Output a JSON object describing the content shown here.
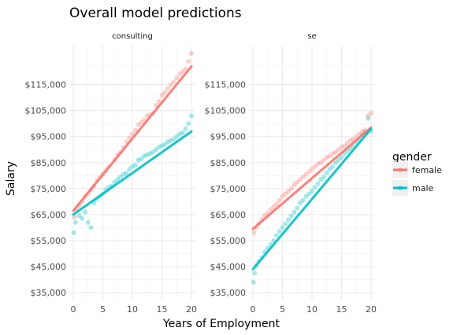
{
  "chart_data": {
    "type": "scatter",
    "title": "Overall model predictions",
    "xlabel": "Years of Employment",
    "ylabel": "Salary",
    "xlim": [
      0,
      20
    ],
    "ylim": [
      32000,
      130000
    ],
    "x_ticks": [
      0,
      5,
      10,
      15,
      20
    ],
    "x_tick_labels": [
      "0",
      "5",
      "10",
      "15",
      "20"
    ],
    "y_ticks": [
      35000,
      45000,
      55000,
      65000,
      75000,
      85000,
      95000,
      105000,
      115000
    ],
    "y_tick_labels": [
      "$35,000",
      "$45,000",
      "$55,000",
      "$65,000",
      "$75,000",
      "$85,000",
      "$95,000",
      "$105,000",
      "$115,000"
    ],
    "grid": true,
    "legend": {
      "title": "gender",
      "placement": "right",
      "entries": [
        {
          "name": "female",
          "color": "#F8766D"
        },
        {
          "name": "male",
          "color": "#00BFC4"
        }
      ]
    },
    "facets": [
      {
        "label": "consulting",
        "series": [
          {
            "name": "female",
            "color": "#F8766D",
            "fit_line": {
              "x": [
                0,
                20
              ],
              "y": [
                66500,
                122000
              ]
            },
            "points": [
              [
                0.2,
                64000
              ],
              [
                0.5,
                67000
              ],
              [
                1,
                68500
              ],
              [
                1.5,
                70000
              ],
              [
                2,
                72000
              ],
              [
                2.5,
                73000
              ],
              [
                3,
                74500
              ],
              [
                3.5,
                76000
              ],
              [
                4,
                78000
              ],
              [
                4.5,
                79500
              ],
              [
                5,
                80500
              ],
              [
                5.5,
                82000
              ],
              [
                6,
                83500
              ],
              [
                7,
                86000
              ],
              [
                7.5,
                88000
              ],
              [
                8,
                89000
              ],
              [
                8.5,
                91000
              ],
              [
                9,
                93000
              ],
              [
                9.5,
                94500
              ],
              [
                10,
                96000
              ],
              [
                10.5,
                97500
              ],
              [
                11,
                99500
              ],
              [
                11.5,
                100500
              ],
              [
                12,
                101500
              ],
              [
                12.5,
                103000
              ],
              [
                13,
                103500
              ],
              [
                13.5,
                104000
              ],
              [
                14,
                107000
              ],
              [
                14.5,
                108500
              ],
              [
                15,
                111000
              ],
              [
                15.5,
                112000
              ],
              [
                16,
                113500
              ],
              [
                16.5,
                115000
              ],
              [
                17,
                116000
              ],
              [
                17.5,
                117500
              ],
              [
                18,
                119000
              ],
              [
                18.5,
                120000
              ],
              [
                19,
                121000
              ],
              [
                19.5,
                124000
              ],
              [
                20,
                127000
              ]
            ]
          },
          {
            "name": "male",
            "color": "#00BFC4",
            "fit_line": {
              "x": [
                0,
                20
              ],
              "y": [
                65000,
                97000
              ]
            },
            "points": [
              [
                0.1,
                58000
              ],
              [
                0.4,
                62000
              ],
              [
                1,
                64500
              ],
              [
                1.5,
                63500
              ],
              [
                2,
                66000
              ],
              [
                2.5,
                62000
              ],
              [
                3,
                60000
              ],
              [
                3.5,
                69500
              ],
              [
                4,
                71000
              ],
              [
                4.5,
                72000
              ],
              [
                5,
                73000
              ],
              [
                5.5,
                74500
              ],
              [
                6,
                75500
              ],
              [
                6.5,
                76000
              ],
              [
                7,
                77500
              ],
              [
                7.5,
                78500
              ],
              [
                8,
                79500
              ],
              [
                8.5,
                80500
              ],
              [
                9,
                81000
              ],
              [
                9.5,
                82500
              ],
              [
                10,
                83500
              ],
              [
                10.5,
                84000
              ],
              [
                11,
                86000
              ],
              [
                11.5,
                86500
              ],
              [
                12,
                87500
              ],
              [
                12.5,
                88000
              ],
              [
                13,
                88500
              ],
              [
                13.5,
                89000
              ],
              [
                14,
                90000
              ],
              [
                14.5,
                91000
              ],
              [
                15,
                91500
              ],
              [
                15.5,
                92000
              ],
              [
                16,
                93000
              ],
              [
                16.5,
                93500
              ],
              [
                17,
                94000
              ],
              [
                17.5,
                95000
              ],
              [
                18,
                96000
              ],
              [
                18.5,
                96500
              ],
              [
                19,
                98000
              ],
              [
                19.5,
                100000
              ],
              [
                20,
                103000
              ]
            ]
          }
        ]
      },
      {
        "label": "se",
        "series": [
          {
            "name": "female",
            "color": "#F8766D",
            "fit_line": {
              "x": [
                0,
                20
              ],
              "y": [
                59500,
                98500
              ]
            },
            "points": [
              [
                0.2,
                58000
              ],
              [
                0.5,
                60000
              ],
              [
                1,
                61500
              ],
              [
                1.5,
                63000
              ],
              [
                2,
                64500
              ],
              [
                2.5,
                65500
              ],
              [
                3,
                67000
              ],
              [
                3.5,
                68000
              ],
              [
                4,
                69000
              ],
              [
                4.5,
                70500
              ],
              [
                5,
                72000
              ],
              [
                5.5,
                73000
              ],
              [
                6,
                74000
              ],
              [
                6.5,
                75000
              ],
              [
                7,
                76500
              ],
              [
                7.5,
                77500
              ],
              [
                8,
                78500
              ],
              [
                8.5,
                79500
              ],
              [
                9,
                80500
              ],
              [
                9.5,
                81500
              ],
              [
                10,
                82500
              ],
              [
                10.5,
                83500
              ],
              [
                11,
                84500
              ],
              [
                11.5,
                85000
              ],
              [
                12,
                86000
              ],
              [
                12.5,
                87000
              ],
              [
                13,
                87500
              ],
              [
                13.5,
                88500
              ],
              [
                14,
                89000
              ],
              [
                14.5,
                90000
              ],
              [
                15,
                91000
              ],
              [
                15.5,
                91500
              ],
              [
                16,
                92500
              ],
              [
                16.5,
                93500
              ],
              [
                17,
                94000
              ],
              [
                17.5,
                95000
              ],
              [
                18,
                96000
              ],
              [
                18.5,
                97000
              ],
              [
                19,
                97500
              ],
              [
                19.5,
                103000
              ],
              [
                20,
                104000
              ]
            ]
          },
          {
            "name": "male",
            "color": "#00BFC4",
            "fit_line": {
              "x": [
                0,
                20
              ],
              "y": [
                44000,
                98000
              ]
            },
            "points": [
              [
                0.1,
                39000
              ],
              [
                0.3,
                42500
              ],
              [
                0.6,
                45500
              ],
              [
                1,
                47000
              ],
              [
                1.5,
                48500
              ],
              [
                2,
                50500
              ],
              [
                2.5,
                52000
              ],
              [
                3,
                53500
              ],
              [
                3.5,
                55000
              ],
              [
                4,
                57000
              ],
              [
                4.5,
                58500
              ],
              [
                5,
                60000
              ],
              [
                5.5,
                61500
              ],
              [
                6,
                63000
              ],
              [
                6.5,
                64500
              ],
              [
                7,
                66000
              ],
              [
                7.5,
                67500
              ],
              [
                8,
                69500
              ],
              [
                8.5,
                70500
              ],
              [
                9,
                72000
              ],
              [
                9.5,
                73000
              ],
              [
                10,
                74000
              ],
              [
                10.5,
                75500
              ],
              [
                11,
                77000
              ],
              [
                11.5,
                78500
              ],
              [
                12,
                79500
              ],
              [
                12.5,
                81000
              ],
              [
                13,
                82500
              ],
              [
                13.5,
                83500
              ],
              [
                14,
                85000
              ],
              [
                14.5,
                86000
              ],
              [
                15,
                87000
              ],
              [
                15.5,
                88500
              ],
              [
                16,
                89500
              ],
              [
                16.5,
                90500
              ],
              [
                17,
                91500
              ],
              [
                17.5,
                93000
              ],
              [
                18,
                94000
              ],
              [
                18.5,
                95500
              ],
              [
                19,
                96500
              ],
              [
                19.5,
                102000
              ],
              [
                20,
                97000
              ]
            ]
          }
        ]
      }
    ]
  }
}
